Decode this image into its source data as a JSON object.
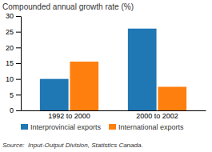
{
  "chart_data": {
    "type": "bar",
    "title": "Compounded annual growth rate (%)",
    "categories": [
      "1992 to 2000",
      "2000 to 2002"
    ],
    "series": [
      {
        "name": "Interprovincial exports",
        "values": [
          10.0,
          26.0
        ]
      },
      {
        "name": "International exports",
        "values": [
          15.5,
          7.5
        ]
      }
    ],
    "ylim": [
      0,
      30
    ],
    "yticks": [
      0,
      5,
      10,
      15,
      20,
      25,
      30
    ],
    "grid": false,
    "legend": "bottom",
    "annotations": [
      "Source:  Input-Output Division, Statistics Canada."
    ]
  }
}
